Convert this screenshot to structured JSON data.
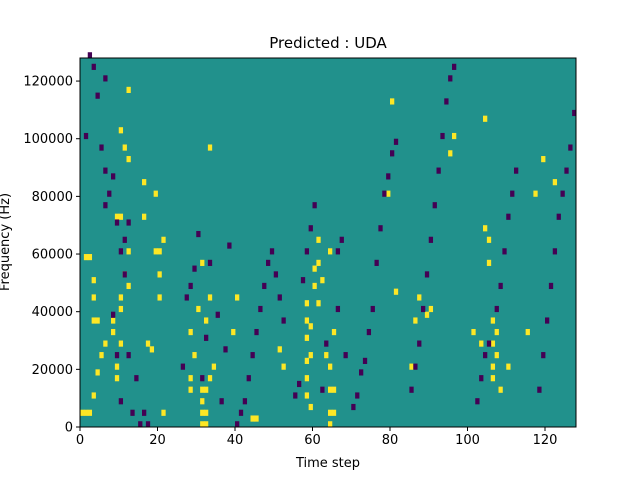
{
  "chart_data": {
    "type": "heatmap",
    "title": "Predicted : UDA",
    "xlabel": "Time step",
    "ylabel": "Frequency (Hz)",
    "xlim": [
      0,
      128
    ],
    "ylim": [
      0,
      128000
    ],
    "x_ticks": [
      0,
      20,
      40,
      60,
      80,
      100,
      120
    ],
    "y_ticks": [
      0,
      20000,
      40000,
      60000,
      80000,
      100000,
      120000
    ],
    "y_tick_labels": [
      "0",
      "20000",
      "40000",
      "60000",
      "80000",
      "100000",
      "120000"
    ],
    "grid": false,
    "n_time_steps": 128,
    "n_frequency_bins": 64,
    "colors": {
      "background": "#21918c",
      "high": "#fde725",
      "low": "#440154"
    },
    "class_values": {
      "background": 1,
      "high": 2,
      "low": 0
    },
    "cells": {
      "high": [
        [
          0,
          2
        ],
        [
          1,
          2
        ],
        [
          2,
          2
        ],
        [
          3,
          5
        ],
        [
          4,
          9
        ],
        [
          5,
          12
        ],
        [
          6,
          14
        ],
        [
          3,
          18
        ],
        [
          4,
          18
        ],
        [
          3,
          22
        ],
        [
          3,
          25
        ],
        [
          1,
          29
        ],
        [
          2,
          29
        ],
        [
          9,
          8
        ],
        [
          9,
          10
        ],
        [
          10,
          14
        ],
        [
          8,
          16
        ],
        [
          8,
          18
        ],
        [
          10,
          20
        ],
        [
          10,
          22
        ],
        [
          12,
          24
        ],
        [
          11,
          26
        ],
        [
          12,
          30
        ],
        [
          9,
          36
        ],
        [
          10,
          36
        ],
        [
          12,
          46
        ],
        [
          11,
          48
        ],
        [
          10,
          51
        ],
        [
          12,
          58
        ],
        [
          16,
          36
        ],
        [
          16,
          42
        ],
        [
          17,
          14
        ],
        [
          18,
          13
        ],
        [
          20,
          22
        ],
        [
          21,
          2
        ],
        [
          20,
          26
        ],
        [
          19,
          30
        ],
        [
          20,
          30
        ],
        [
          21,
          32
        ],
        [
          19,
          40
        ],
        [
          28,
          6
        ],
        [
          28,
          8
        ],
        [
          29,
          12
        ],
        [
          28,
          16
        ],
        [
          30,
          20
        ],
        [
          31,
          28
        ],
        [
          32,
          18
        ],
        [
          33,
          22
        ],
        [
          33,
          48
        ],
        [
          39,
          16
        ],
        [
          40,
          22
        ],
        [
          51,
          13
        ],
        [
          52,
          10
        ],
        [
          44,
          1
        ],
        [
          45,
          1
        ],
        [
          31,
          0
        ],
        [
          31,
          2
        ],
        [
          31,
          4
        ],
        [
          31,
          6
        ],
        [
          32,
          0
        ],
        [
          32,
          2
        ],
        [
          32,
          6
        ],
        [
          33,
          8
        ],
        [
          34,
          10
        ],
        [
          58,
          5
        ],
        [
          58,
          8
        ],
        [
          58,
          11
        ],
        [
          58,
          15
        ],
        [
          58,
          18
        ],
        [
          58,
          21
        ],
        [
          59,
          3
        ],
        [
          59,
          12
        ],
        [
          59,
          17
        ],
        [
          60,
          24
        ],
        [
          60,
          27
        ],
        [
          61,
          21
        ],
        [
          61,
          28
        ],
        [
          61,
          32
        ],
        [
          62,
          25
        ],
        [
          63,
          12
        ],
        [
          64,
          30
        ],
        [
          64,
          0
        ],
        [
          64,
          2
        ],
        [
          64,
          6
        ],
        [
          64,
          10
        ],
        [
          65,
          2
        ],
        [
          65,
          6
        ],
        [
          65,
          16
        ],
        [
          79,
          40
        ],
        [
          80,
          56
        ],
        [
          81,
          23
        ],
        [
          85,
          10
        ],
        [
          86,
          18
        ],
        [
          87,
          22
        ],
        [
          89,
          19
        ],
        [
          90,
          20
        ],
        [
          95,
          47
        ],
        [
          96,
          50
        ],
        [
          101,
          16
        ],
        [
          103,
          14
        ],
        [
          104,
          34
        ],
        [
          104,
          53
        ],
        [
          105,
          28
        ],
        [
          105,
          32
        ],
        [
          106,
          8
        ],
        [
          106,
          10
        ],
        [
          106,
          14
        ],
        [
          106,
          18
        ],
        [
          107,
          12
        ],
        [
          107,
          16
        ],
        [
          108,
          6
        ],
        [
          110,
          10
        ],
        [
          115,
          16
        ],
        [
          117,
          40
        ],
        [
          119,
          46
        ],
        [
          122,
          42
        ]
      ],
      "low": [
        [
          1,
          50
        ],
        [
          2,
          64
        ],
        [
          3,
          62
        ],
        [
          4,
          57
        ],
        [
          5,
          48
        ],
        [
          6,
          38
        ],
        [
          7,
          40
        ],
        [
          8,
          43
        ],
        [
          9,
          35
        ],
        [
          10,
          30
        ],
        [
          11,
          32
        ],
        [
          12,
          35
        ],
        [
          6,
          44
        ],
        [
          6,
          60
        ],
        [
          8,
          19
        ],
        [
          9,
          12
        ],
        [
          10,
          4
        ],
        [
          11,
          26
        ],
        [
          12,
          12
        ],
        [
          14,
          8
        ],
        [
          13,
          2
        ],
        [
          15,
          0
        ],
        [
          16,
          2
        ],
        [
          17,
          0
        ],
        [
          26,
          10
        ],
        [
          27,
          22
        ],
        [
          28,
          24
        ],
        [
          29,
          27
        ],
        [
          30,
          33
        ],
        [
          31,
          8
        ],
        [
          32,
          15
        ],
        [
          33,
          28
        ],
        [
          35,
          19
        ],
        [
          36,
          4
        ],
        [
          37,
          13
        ],
        [
          38,
          31
        ],
        [
          40,
          0
        ],
        [
          41,
          2
        ],
        [
          42,
          4
        ],
        [
          43,
          8
        ],
        [
          44,
          12
        ],
        [
          45,
          16
        ],
        [
          46,
          20
        ],
        [
          47,
          24
        ],
        [
          48,
          28
        ],
        [
          49,
          30
        ],
        [
          50,
          26
        ],
        [
          51,
          22
        ],
        [
          52,
          18
        ],
        [
          55,
          5
        ],
        [
          56,
          7
        ],
        [
          57,
          25
        ],
        [
          58,
          30
        ],
        [
          59,
          34
        ],
        [
          60,
          38
        ],
        [
          62,
          6
        ],
        [
          63,
          14
        ],
        [
          66,
          20
        ],
        [
          66,
          30
        ],
        [
          67,
          32
        ],
        [
          68,
          12
        ],
        [
          70,
          3
        ],
        [
          71,
          5
        ],
        [
          72,
          9
        ],
        [
          73,
          11
        ],
        [
          74,
          16
        ],
        [
          75,
          20
        ],
        [
          76,
          28
        ],
        [
          77,
          34
        ],
        [
          78,
          40
        ],
        [
          79,
          43
        ],
        [
          80,
          47
        ],
        [
          81,
          49
        ],
        [
          85,
          6
        ],
        [
          86,
          10
        ],
        [
          87,
          14
        ],
        [
          88,
          20
        ],
        [
          89,
          26
        ],
        [
          90,
          32
        ],
        [
          91,
          38
        ],
        [
          92,
          44
        ],
        [
          93,
          50
        ],
        [
          94,
          56
        ],
        [
          95,
          60
        ],
        [
          96,
          62
        ],
        [
          102,
          4
        ],
        [
          103,
          8
        ],
        [
          104,
          12
        ],
        [
          105,
          14
        ],
        [
          107,
          20
        ],
        [
          108,
          24
        ],
        [
          109,
          30
        ],
        [
          110,
          36
        ],
        [
          111,
          40
        ],
        [
          112,
          44
        ],
        [
          118,
          6
        ],
        [
          119,
          12
        ],
        [
          120,
          18
        ],
        [
          121,
          24
        ],
        [
          122,
          30
        ],
        [
          123,
          36
        ],
        [
          124,
          40
        ],
        [
          125,
          44
        ],
        [
          126,
          48
        ],
        [
          127,
          54
        ]
      ]
    }
  }
}
